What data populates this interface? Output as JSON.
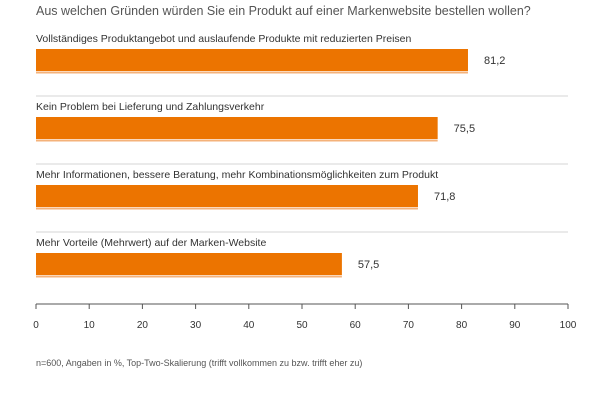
{
  "chart_data": {
    "type": "bar",
    "orientation": "horizontal",
    "title": "Aus welchen Gründen würden Sie ein Produkt auf einer Markenwebsite bestellen wollen?",
    "categories": [
      "Vollständiges Produktangebot und auslaufende Produkte mit reduzierten Preisen",
      "Kein Problem bei Lieferung und Zahlungsverkehr",
      "Mehr Informationen, bessere Beratung, mehr Kombinationsmöglichkeiten zum Produkt",
      "Mehr Vorteile (Mehrwert) auf der Marken-Website"
    ],
    "values": [
      81.2,
      75.5,
      71.8,
      57.5
    ],
    "value_labels": [
      "81,2",
      "75,5",
      "71,8",
      "57,5"
    ],
    "xlim": [
      0,
      100
    ],
    "xticks": [
      0,
      10,
      20,
      30,
      40,
      50,
      60,
      70,
      80,
      90,
      100
    ],
    "bar_color": "#ec7400",
    "footnote": "n=600, Angaben in %, Top-Two-Skalierung (trifft vollkommen zu bzw. trifft eher zu)",
    "grid": false,
    "legend": "none"
  }
}
